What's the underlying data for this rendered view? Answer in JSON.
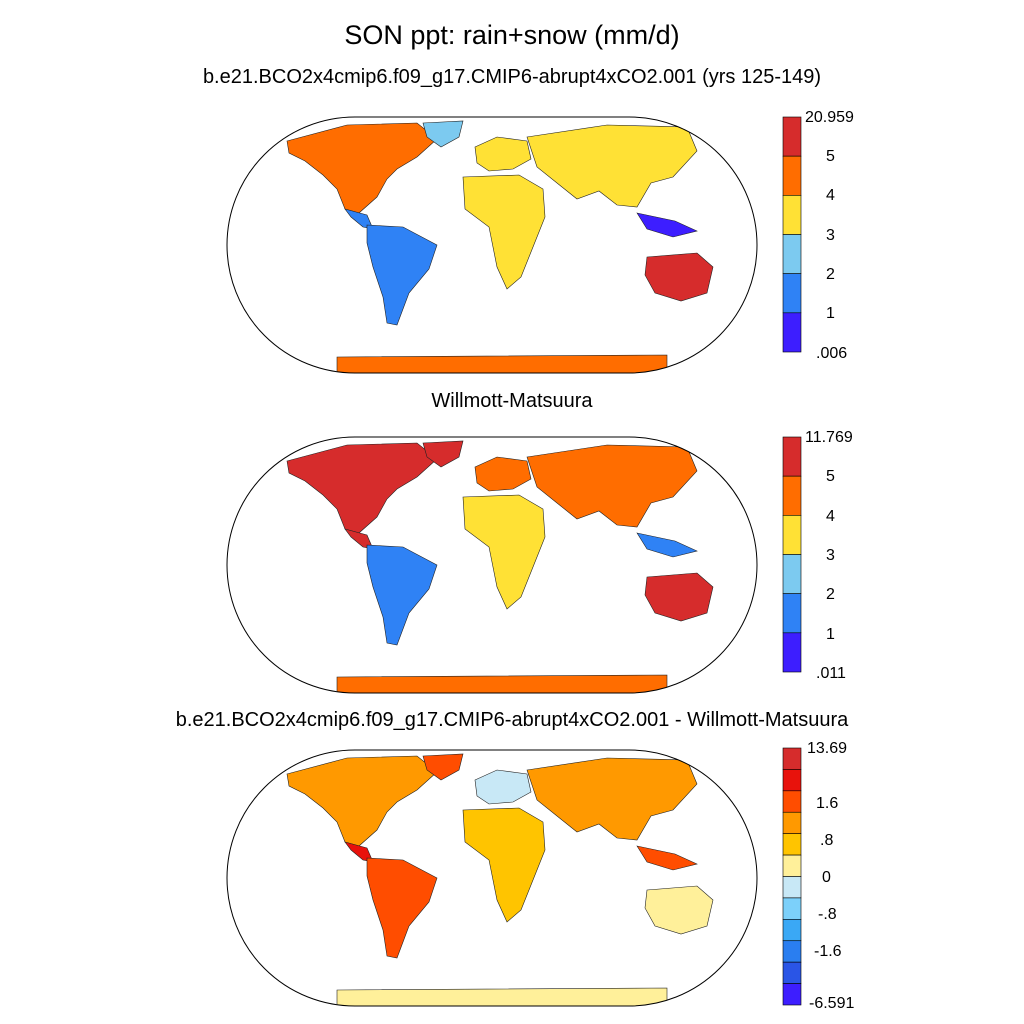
{
  "figure": {
    "title": "SON ppt: rain+snow (mm/d)"
  },
  "panels": [
    {
      "title": "b.e21.BCO2x4cmip6.f09_g17.CMIP6-abrupt4xCO2.001 (yrs 125-149)",
      "colorbar": {
        "labels": [
          "20.959",
          "5",
          "4",
          "3",
          "2",
          "1",
          ".006"
        ],
        "colors": [
          "#d62c2c",
          "#ff6d00",
          "#ffe135",
          "#7ccaf0",
          "#2f82f5",
          "#3d1eff"
        ]
      }
    },
    {
      "title": "Willmott-Matsuura",
      "colorbar": {
        "labels": [
          "11.769",
          "5",
          "4",
          "3",
          "2",
          "1",
          ".011"
        ],
        "colors": [
          "#d62c2c",
          "#ff6d00",
          "#ffe135",
          "#7ccaf0",
          "#2f82f5",
          "#3d1eff"
        ]
      }
    },
    {
      "title": "b.e21.BCO2x4cmip6.f09_g17.CMIP6-abrupt4xCO2.001 - Willmott-Matsuura",
      "colorbar": {
        "labels": [
          "13.69",
          "1.6",
          ".8",
          "0",
          "-.8",
          "-1.6",
          "-6.591"
        ],
        "colors": [
          "#d62c2c",
          "#e8120c",
          "#ff4d00",
          "#ff9900",
          "#ffc400",
          "#fff09a",
          "#c8e8f6",
          "#7cd0fa",
          "#3aa8f5",
          "#2a7ef0",
          "#2a55e6",
          "#3d1eff"
        ]
      }
    }
  ]
}
